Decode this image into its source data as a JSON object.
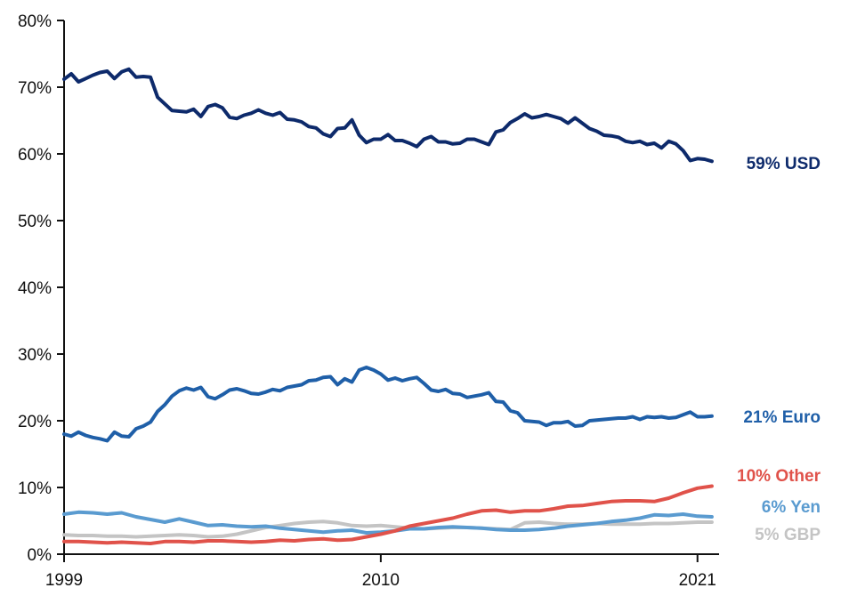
{
  "chart_data": {
    "type": "line",
    "title": "",
    "xlabel": "",
    "ylabel": "",
    "xlim": [
      1999,
      2021.75
    ],
    "ylim": [
      0,
      80
    ],
    "grid": false,
    "legend": "none",
    "y_ticks": [
      0,
      10,
      20,
      30,
      40,
      50,
      60,
      70,
      80
    ],
    "y_tick_labels": [
      "0%",
      "10%",
      "20%",
      "30%",
      "40%",
      "50%",
      "60%",
      "70%",
      "80%"
    ],
    "x_ticks": [
      1999,
      2010,
      2021
    ],
    "x_tick_labels": [
      "1999",
      "2010",
      "2021"
    ],
    "series": [
      {
        "name": "USD",
        "end_label": "59% USD",
        "color": "#0d2a6b",
        "x": [
          1999.0,
          1999.25,
          1999.5,
          1999.75,
          2000.0,
          2000.25,
          2000.5,
          2000.75,
          2001.0,
          2001.25,
          2001.5,
          2001.75,
          2002.0,
          2002.25,
          2002.5,
          2002.75,
          2003.0,
          2003.25,
          2003.5,
          2003.75,
          2004.0,
          2004.25,
          2004.5,
          2004.75,
          2005.0,
          2005.25,
          2005.5,
          2005.75,
          2006.0,
          2006.25,
          2006.5,
          2006.75,
          2007.0,
          2007.25,
          2007.5,
          2007.75,
          2008.0,
          2008.25,
          2008.5,
          2008.75,
          2009.0,
          2009.25,
          2009.5,
          2009.75,
          2010.0,
          2010.25,
          2010.5,
          2010.75,
          2011.0,
          2011.25,
          2011.5,
          2011.75,
          2012.0,
          2012.25,
          2012.5,
          2012.75,
          2013.0,
          2013.25,
          2013.5,
          2013.75,
          2014.0,
          2014.25,
          2014.5,
          2014.75,
          2015.0,
          2015.25,
          2015.5,
          2015.75,
          2016.0,
          2016.25,
          2016.5,
          2016.75,
          2017.0,
          2017.25,
          2017.5,
          2017.75,
          2018.0,
          2018.25,
          2018.5,
          2018.75,
          2019.0,
          2019.25,
          2019.5,
          2019.75,
          2020.0,
          2020.25,
          2020.5,
          2020.75,
          2021.0,
          2021.25,
          2021.5
        ],
        "values": [
          71.2,
          72.0,
          70.8,
          71.3,
          71.8,
          72.2,
          72.4,
          71.3,
          72.3,
          72.7,
          71.5,
          71.6,
          71.5,
          68.5,
          67.5,
          66.5,
          66.4,
          66.3,
          66.7,
          65.6,
          67.1,
          67.4,
          66.9,
          65.5,
          65.3,
          65.8,
          66.1,
          66.6,
          66.1,
          65.8,
          66.2,
          65.2,
          65.1,
          64.8,
          64.1,
          63.9,
          63.0,
          62.6,
          63.8,
          63.9,
          65.1,
          62.8,
          61.7,
          62.2,
          62.2,
          62.9,
          62.0,
          62.0,
          61.6,
          61.1,
          62.2,
          62.6,
          61.8,
          61.8,
          61.5,
          61.6,
          62.2,
          62.2,
          61.8,
          61.4,
          63.3,
          63.6,
          64.7,
          65.3,
          66.0,
          65.4,
          65.6,
          65.9,
          65.6,
          65.3,
          64.6,
          65.4,
          64.6,
          63.8,
          63.4,
          62.8,
          62.7,
          62.5,
          61.9,
          61.7,
          61.9,
          61.4,
          61.6,
          60.9,
          61.9,
          61.5,
          60.5,
          59.0,
          59.3,
          59.2,
          58.9
        ]
      },
      {
        "name": "Euro",
        "end_label": "21% Euro",
        "color": "#1f5fa8",
        "x": [
          1999.0,
          1999.25,
          1999.5,
          1999.75,
          2000.0,
          2000.25,
          2000.5,
          2000.75,
          2001.0,
          2001.25,
          2001.5,
          2001.75,
          2002.0,
          2002.25,
          2002.5,
          2002.75,
          2003.0,
          2003.25,
          2003.5,
          2003.75,
          2004.0,
          2004.25,
          2004.5,
          2004.75,
          2005.0,
          2005.25,
          2005.5,
          2005.75,
          2006.0,
          2006.25,
          2006.5,
          2006.75,
          2007.0,
          2007.25,
          2007.5,
          2007.75,
          2008.0,
          2008.25,
          2008.5,
          2008.75,
          2009.0,
          2009.25,
          2009.5,
          2009.75,
          2010.0,
          2010.25,
          2010.5,
          2010.75,
          2011.0,
          2011.25,
          2011.5,
          2011.75,
          2012.0,
          2012.25,
          2012.5,
          2012.75,
          2013.0,
          2013.25,
          2013.5,
          2013.75,
          2014.0,
          2014.25,
          2014.5,
          2014.75,
          2015.0,
          2015.25,
          2015.5,
          2015.75,
          2016.0,
          2016.25,
          2016.5,
          2016.75,
          2017.0,
          2017.25,
          2017.5,
          2017.75,
          2018.0,
          2018.25,
          2018.5,
          2018.75,
          2019.0,
          2019.25,
          2019.5,
          2019.75,
          2020.0,
          2020.25,
          2020.5,
          2020.75,
          2021.0,
          2021.25,
          2021.5
        ],
        "values": [
          18.0,
          17.7,
          18.3,
          17.8,
          17.5,
          17.3,
          17.0,
          18.3,
          17.7,
          17.6,
          18.8,
          19.2,
          19.8,
          21.4,
          22.4,
          23.7,
          24.5,
          24.9,
          24.6,
          25.0,
          23.6,
          23.3,
          23.9,
          24.6,
          24.8,
          24.5,
          24.1,
          24.0,
          24.3,
          24.7,
          24.5,
          25.0,
          25.2,
          25.4,
          26.0,
          26.1,
          26.5,
          26.6,
          25.4,
          26.3,
          25.8,
          27.6,
          28.0,
          27.6,
          27.0,
          26.1,
          26.4,
          26.0,
          26.3,
          26.5,
          25.6,
          24.6,
          24.4,
          24.7,
          24.1,
          24.0,
          23.5,
          23.7,
          23.9,
          24.2,
          22.9,
          22.8,
          21.5,
          21.2,
          20.0,
          19.9,
          19.8,
          19.3,
          19.7,
          19.7,
          19.9,
          19.2,
          19.3,
          20.0,
          20.1,
          20.2,
          20.3,
          20.4,
          20.4,
          20.6,
          20.2,
          20.6,
          20.5,
          20.6,
          20.4,
          20.5,
          20.9,
          21.3,
          20.6,
          20.6,
          20.7
        ]
      },
      {
        "name": "Other",
        "end_label": "10% Other",
        "color": "#e0524a",
        "x": [
          1999.0,
          1999.5,
          2000.0,
          2000.5,
          2001.0,
          2001.5,
          2002.0,
          2002.5,
          2003.0,
          2003.5,
          2004.0,
          2004.5,
          2005.0,
          2005.5,
          2006.0,
          2006.5,
          2007.0,
          2007.5,
          2008.0,
          2008.5,
          2009.0,
          2009.5,
          2010.0,
          2010.5,
          2011.0,
          2011.5,
          2012.0,
          2012.5,
          2013.0,
          2013.5,
          2014.0,
          2014.5,
          2015.0,
          2015.5,
          2016.0,
          2016.5,
          2017.0,
          2017.5,
          2018.0,
          2018.5,
          2019.0,
          2019.5,
          2020.0,
          2020.5,
          2021.0,
          2021.5
        ],
        "values": [
          1.9,
          1.9,
          1.8,
          1.7,
          1.8,
          1.7,
          1.6,
          1.9,
          1.9,
          1.8,
          2.0,
          2.0,
          1.9,
          1.8,
          1.9,
          2.1,
          2.0,
          2.2,
          2.3,
          2.1,
          2.2,
          2.6,
          3.0,
          3.5,
          4.2,
          4.6,
          5.0,
          5.4,
          6.0,
          6.5,
          6.6,
          6.3,
          6.5,
          6.5,
          6.8,
          7.2,
          7.3,
          7.6,
          7.9,
          8.0,
          8.0,
          7.9,
          8.4,
          9.2,
          9.9,
          10.2
        ]
      },
      {
        "name": "Yen",
        "end_label": "6% Yen",
        "color": "#5a9bd0",
        "x": [
          1999.0,
          1999.5,
          2000.0,
          2000.5,
          2001.0,
          2001.5,
          2002.0,
          2002.5,
          2003.0,
          2003.5,
          2004.0,
          2004.5,
          2005.0,
          2005.5,
          2006.0,
          2006.5,
          2007.0,
          2007.5,
          2008.0,
          2008.5,
          2009.0,
          2009.5,
          2010.0,
          2010.5,
          2011.0,
          2011.5,
          2012.0,
          2012.5,
          2013.0,
          2013.5,
          2014.0,
          2014.5,
          2015.0,
          2015.5,
          2016.0,
          2016.5,
          2017.0,
          2017.5,
          2018.0,
          2018.5,
          2019.0,
          2019.5,
          2020.0,
          2020.5,
          2021.0,
          2021.5
        ],
        "values": [
          6.0,
          6.3,
          6.2,
          6.0,
          6.2,
          5.6,
          5.2,
          4.8,
          5.3,
          4.8,
          4.3,
          4.4,
          4.2,
          4.1,
          4.2,
          3.9,
          3.7,
          3.5,
          3.3,
          3.5,
          3.6,
          3.2,
          3.3,
          3.5,
          3.8,
          3.8,
          4.0,
          4.1,
          4.0,
          3.9,
          3.7,
          3.6,
          3.6,
          3.7,
          3.9,
          4.2,
          4.4,
          4.6,
          4.9,
          5.1,
          5.4,
          5.9,
          5.8,
          6.0,
          5.7,
          5.6
        ]
      },
      {
        "name": "GBP",
        "end_label": "5% GBP",
        "color": "#c4c4c4",
        "x": [
          1999.0,
          1999.5,
          2000.0,
          2000.5,
          2001.0,
          2001.5,
          2002.0,
          2002.5,
          2003.0,
          2003.5,
          2004.0,
          2004.5,
          2005.0,
          2005.5,
          2006.0,
          2006.5,
          2007.0,
          2007.5,
          2008.0,
          2008.5,
          2009.0,
          2009.5,
          2010.0,
          2010.5,
          2011.0,
          2011.5,
          2012.0,
          2012.5,
          2013.0,
          2013.5,
          2014.0,
          2014.5,
          2015.0,
          2015.5,
          2016.0,
          2016.5,
          2017.0,
          2017.5,
          2018.0,
          2018.5,
          2019.0,
          2019.5,
          2020.0,
          2020.5,
          2021.0,
          2021.5
        ],
        "values": [
          2.9,
          2.8,
          2.8,
          2.7,
          2.7,
          2.6,
          2.7,
          2.8,
          2.9,
          2.8,
          2.6,
          2.7,
          3.0,
          3.5,
          4.0,
          4.3,
          4.6,
          4.8,
          4.9,
          4.7,
          4.3,
          4.2,
          4.3,
          4.1,
          3.9,
          3.8,
          3.9,
          4.0,
          4.0,
          3.9,
          3.8,
          3.7,
          4.7,
          4.8,
          4.6,
          4.5,
          4.5,
          4.6,
          4.5,
          4.5,
          4.5,
          4.6,
          4.6,
          4.7,
          4.8,
          4.8
        ]
      }
    ]
  }
}
